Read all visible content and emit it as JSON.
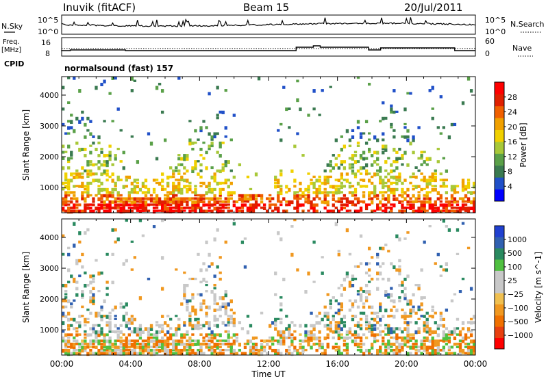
{
  "header": {
    "station": "Inuvik (fitACF)",
    "beam": "Beam 15",
    "date": "20/Jul/2011"
  },
  "top_panels": {
    "nsky_label": "N.Sky",
    "nsky_ticks": [
      "10^5",
      "10^0"
    ],
    "nsearch_label": "N.Search",
    "nsearch_ticks": [
      "10^5",
      "10^0"
    ],
    "freq_label_1": "Freq.",
    "freq_label_2": "[MHz]",
    "freq_ticks": [
      "16",
      "8"
    ],
    "nave_label": "Nave",
    "nave_ticks": [
      "60",
      "0"
    ],
    "cpid_label": "CPID",
    "cpid_value": "normalsound (fast) 157"
  },
  "chart_data": [
    {
      "type": "heatmap",
      "title": "",
      "xlabel": "Time UT",
      "ylabel": "Slant Range [km]",
      "x_ticks": [
        "00:00",
        "04:00",
        "08:00",
        "12:00",
        "16:00",
        "20:00",
        "00:00"
      ],
      "y_ticks": [
        "1000",
        "2000",
        "3000",
        "4000"
      ],
      "xlim_hours": [
        0,
        24
      ],
      "ylim_km": [
        180,
        4600
      ],
      "colorbar": {
        "label": "Power [dB]",
        "ticks": [
          "28",
          "24",
          "20",
          "16",
          "12",
          "8",
          "4"
        ],
        "colors": [
          "#0000ff",
          "#2050c8",
          "#3a7a50",
          "#5aa048",
          "#a8c838",
          "#f0d000",
          "#f0a000",
          "#f06000",
          "#e02000",
          "#ff0000"
        ]
      }
    },
    {
      "type": "heatmap",
      "title": "",
      "xlabel": "Time UT",
      "ylabel": "Slant Range [km]",
      "x_ticks": [
        "00:00",
        "04:00",
        "08:00",
        "12:00",
        "16:00",
        "20:00",
        "00:00"
      ],
      "y_ticks": [
        "1000",
        "2000",
        "3000",
        "4000"
      ],
      "xlim_hours": [
        0,
        24
      ],
      "ylim_km": [
        180,
        4600
      ],
      "colorbar": {
        "label": "Velocity [m s^-1]",
        "ticks": [
          "1000",
          "500",
          "100",
          "25",
          "−25",
          "−100",
          "−500",
          "−1000"
        ],
        "colors": [
          "#ff0000",
          "#e84010",
          "#f07000",
          "#f09820",
          "#f0c050",
          "#c8c8c8",
          "#c8c8c8",
          "#50c040",
          "#2a8a60",
          "#3060b0",
          "#2040d0"
        ]
      }
    }
  ]
}
